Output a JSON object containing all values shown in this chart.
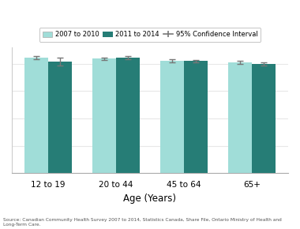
{
  "categories": [
    "12 to 19",
    "20 to 44",
    "45 to 64",
    "65+"
  ],
  "series1_label": "2007 to 2010",
  "series2_label": "2011 to 2014",
  "series1_color": "#a0ddd8",
  "series2_color": "#267d76",
  "series1_values": [
    0.845,
    0.835,
    0.82,
    0.808
  ],
  "series2_values": [
    0.815,
    0.843,
    0.818,
    0.798
  ],
  "series1_ci": [
    0.012,
    0.01,
    0.01,
    0.01
  ],
  "series2_ci": [
    0.028,
    0.012,
    0.01,
    0.01
  ],
  "xlabel": "Age (Years)",
  "ylim": [
    0.0,
    0.92
  ],
  "ytick_positions": [
    0.2,
    0.4,
    0.6,
    0.8
  ],
  "source": "Source: Canadian Community Health Survey 2007 to 2014, Statistics Canada, Share File, Ontario Ministry of Health and Long-Term Care.",
  "bar_width": 0.35,
  "background_color": "#ffffff",
  "grid_color": "#e8e8e8",
  "legend_ci_label": "95% Confidence Interval"
}
